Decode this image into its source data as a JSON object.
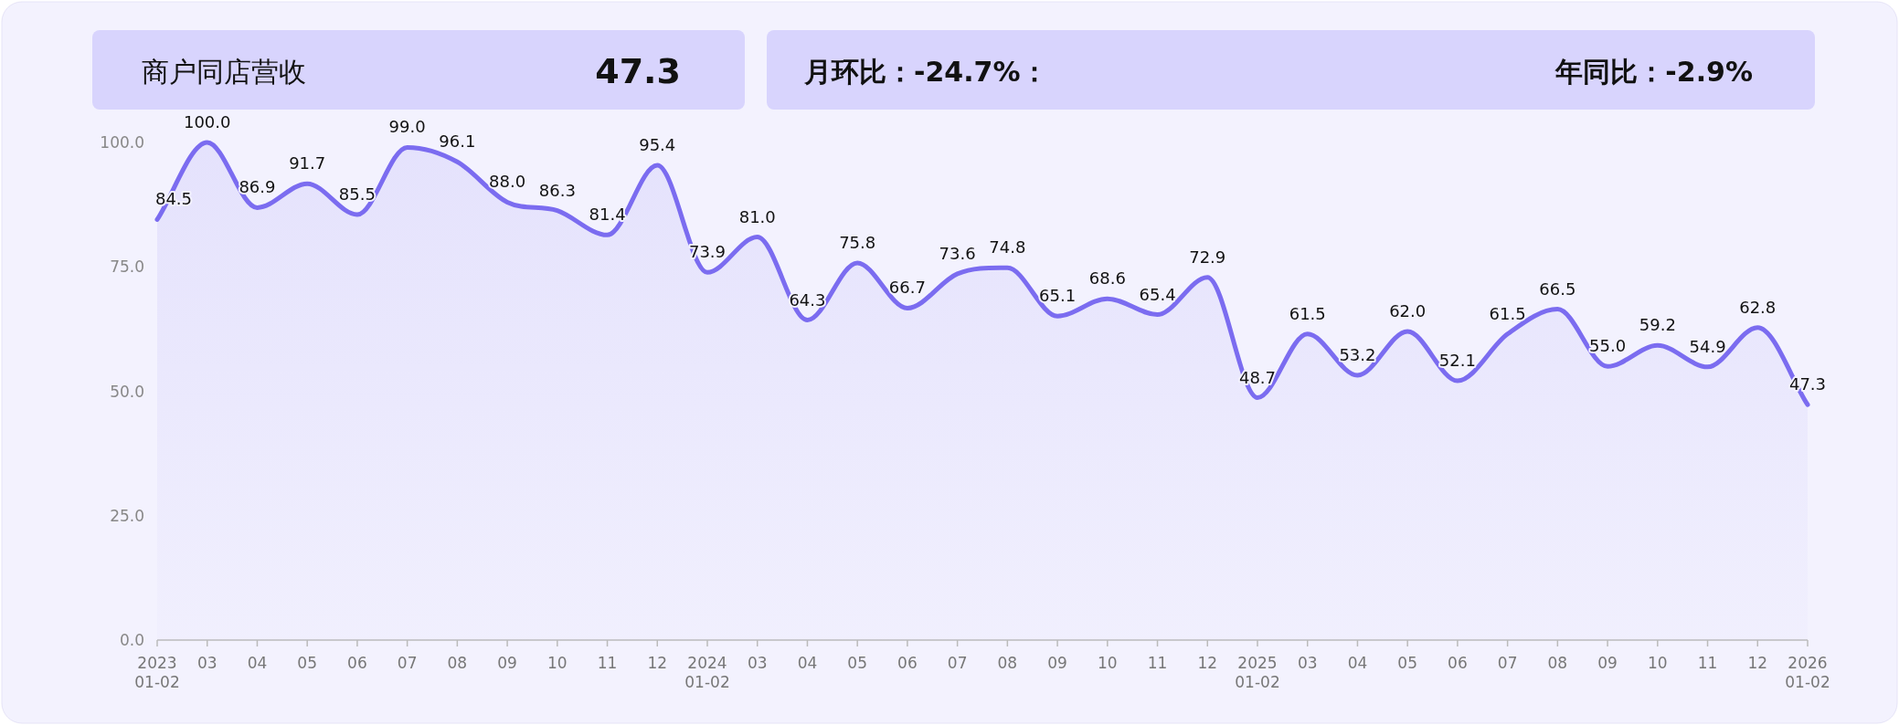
{
  "chart_data": {
    "type": "area",
    "title": "商户同店营收",
    "annotations": [
      "47.3",
      "月环比：-24.7%：",
      "年同比：-2.9%"
    ],
    "categories": [
      "2023\n01-02",
      "03",
      "04",
      "05",
      "06",
      "07",
      "08",
      "09",
      "10",
      "11",
      "12",
      "2024\n01-02",
      "03",
      "04",
      "05",
      "06",
      "07",
      "08",
      "09",
      "10",
      "11",
      "12",
      "2025\n01-02",
      "03",
      "04",
      "05",
      "06",
      "07",
      "08",
      "09",
      "10",
      "11",
      "12",
      "2026\n01-02"
    ],
    "values": [
      84.5,
      100.0,
      86.9,
      91.7,
      85.5,
      99.0,
      96.1,
      88.0,
      86.3,
      81.4,
      95.4,
      73.9,
      81.0,
      64.3,
      75.8,
      66.7,
      73.6,
      74.8,
      65.1,
      68.6,
      65.4,
      72.9,
      48.7,
      61.5,
      53.2,
      62.0,
      52.1,
      61.5,
      66.5,
      55.0,
      59.2,
      54.9,
      62.8,
      47.3
    ],
    "color": "#7b6cf0",
    "ylim": [
      0,
      100
    ],
    "yticks": [
      {
        "value": 0,
        "label": "0.0"
      },
      {
        "value": 25,
        "label": "25.0"
      },
      {
        "value": 50,
        "label": "50.0"
      },
      {
        "value": 75,
        "label": "75.0"
      },
      {
        "value": 100,
        "label": "100.0"
      }
    ],
    "value_labels": [
      "84.5",
      "100.0",
      "86.9",
      "91.7",
      "85.5",
      "99.0",
      "96.1",
      "88.0",
      "86.3",
      "81.4",
      "95.4",
      "73.9",
      "81.0",
      "64.3",
      "75.8",
      "66.7",
      "73.6",
      "74.8",
      "65.1",
      "68.6",
      "65.4",
      "72.9",
      "48.7",
      "61.5",
      "53.2",
      "62.0",
      "52.1",
      "61.5",
      "66.5",
      "55.0",
      "59.2",
      "54.9",
      "62.8",
      "47.3"
    ]
  }
}
